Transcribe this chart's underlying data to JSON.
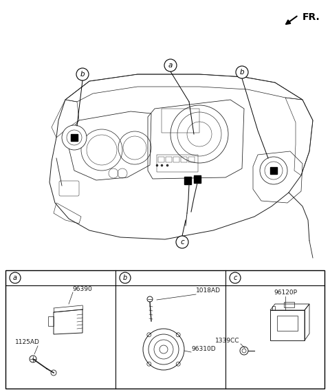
{
  "bg_color": "#ffffff",
  "fig_width": 4.8,
  "fig_height": 5.7,
  "dpi": 100,
  "line_color": "#1a1a1a",
  "text_color": "#1a1a1a",
  "fr_text": "FR.",
  "label_a": "a",
  "label_b": "b",
  "label_c": "c",
  "part_a_codes": [
    "96390",
    "1125AD"
  ],
  "part_b_codes": [
    "1018AD",
    "96310D"
  ],
  "part_c_codes": [
    "96120P",
    "1339CC"
  ]
}
